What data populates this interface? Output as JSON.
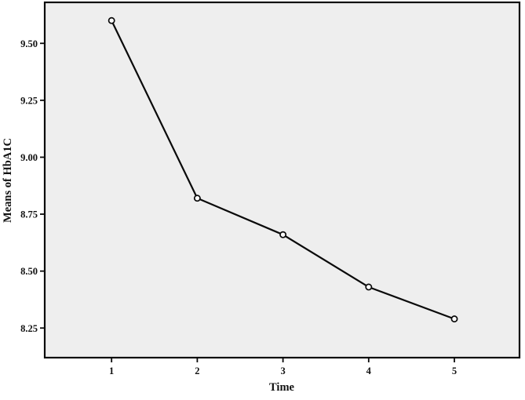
{
  "chart_data": {
    "type": "line",
    "title": "",
    "xlabel": "Time",
    "ylabel": "Means of HbA1C",
    "x": [
      1,
      2,
      3,
      4,
      5
    ],
    "series": [
      {
        "name": "Means of HbA1C",
        "values": [
          9.6,
          8.82,
          8.66,
          8.43,
          8.29
        ]
      }
    ],
    "xticks": [
      1,
      2,
      3,
      4,
      5
    ],
    "xtick_labels": [
      "1",
      "2",
      "3",
      "4",
      "5"
    ],
    "yticks": [
      8.25,
      8.5,
      8.75,
      9.0,
      9.25,
      9.5
    ],
    "ytick_labels": [
      "8.25",
      "8.50",
      "8.75",
      "9.00",
      "9.25",
      "9.50"
    ],
    "xlim": [
      0.22,
      5.76
    ],
    "ylim": [
      8.12,
      9.68
    ],
    "grid": false,
    "legend": "none",
    "marker": "open-circle",
    "line_color": "#0a0a0a",
    "marker_fill": "#ffffff",
    "marker_stroke": "#0a0a0a",
    "plot_bg": "#eeeeee",
    "outer_bg": "#ffffff",
    "border_color": "#0a0a0a",
    "tick_color": "#0a0a0a"
  }
}
